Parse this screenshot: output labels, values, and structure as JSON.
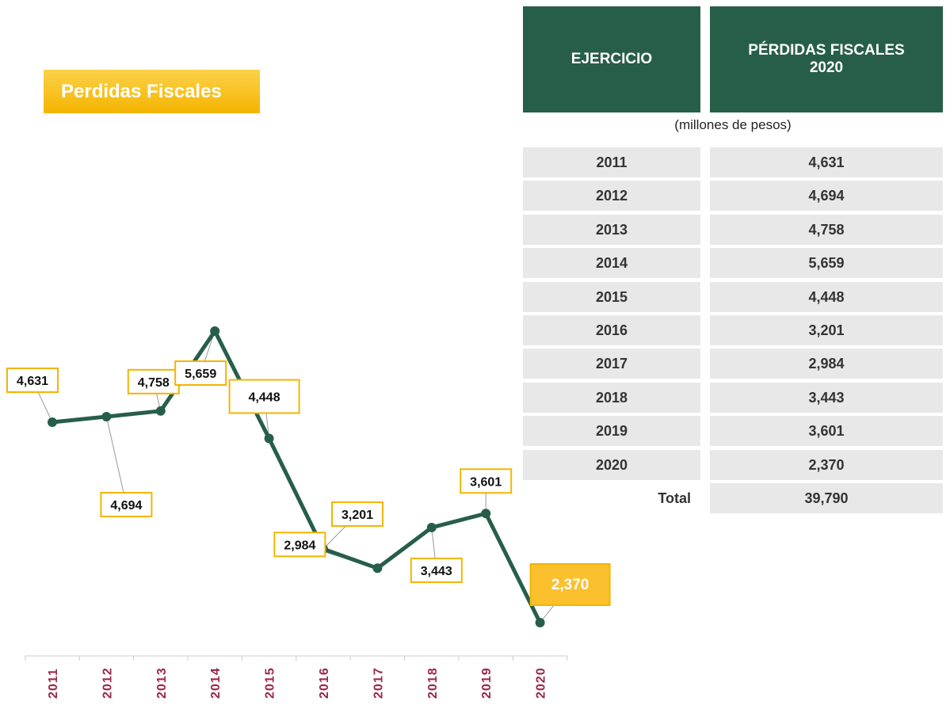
{
  "chart_data": {
    "type": "line",
    "title": "Perdidas Fiscales",
    "categories": [
      "2011",
      "2012",
      "2013",
      "2014",
      "2015",
      "2016",
      "2017",
      "2018",
      "2019",
      "2020"
    ],
    "series": [
      {
        "name": "Pérdidas Fiscales",
        "color": "#275e4a",
        "values": [
          4631,
          4694,
          4758,
          5659,
          4448,
          3201,
          2984,
          3443,
          3601,
          2370
        ],
        "value_labels": [
          "4,631",
          "4,694",
          "4,758",
          "5,659",
          "4,448",
          "3,201",
          "2,984",
          "3,443",
          "3,601",
          "2,370"
        ]
      }
    ]
  },
  "table": {
    "header": [
      "EJERCICIO",
      "PÉRDIDAS FISCALES 2020"
    ],
    "subtitle": "(millones de pesos)",
    "rows": [
      [
        "2011",
        "4,631"
      ],
      [
        "2012",
        "4,694"
      ],
      [
        "2013",
        "4,758"
      ],
      [
        "2014",
        "5,659"
      ],
      [
        "2015",
        "4,448"
      ],
      [
        "2016",
        "3,201"
      ],
      [
        "2017",
        "2,984"
      ],
      [
        "2018",
        "3,443"
      ],
      [
        "2019",
        "3,601"
      ],
      [
        "2020",
        "2,370"
      ]
    ],
    "total": [
      "Total",
      "39,790"
    ]
  }
}
